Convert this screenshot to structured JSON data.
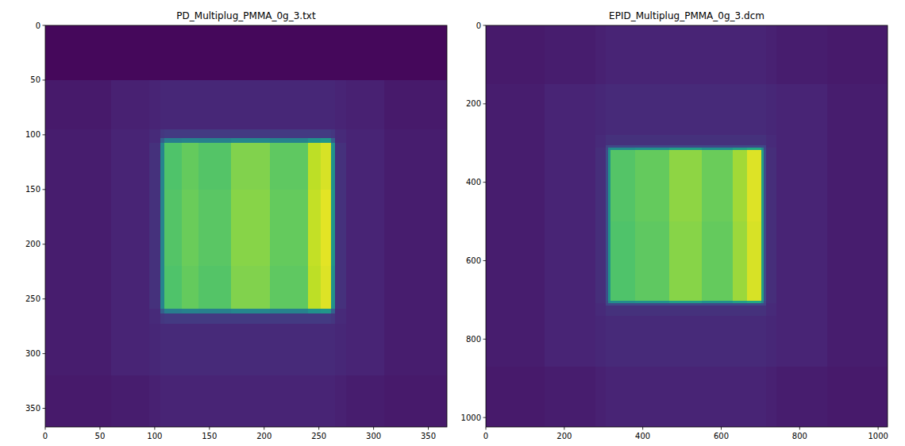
{
  "chart_data": [
    {
      "type": "heatmap",
      "title": "PD_Multiplug_PMMA_0g_3.txt",
      "xlim": [
        0,
        367
      ],
      "ylim": [
        367,
        0
      ],
      "xticks": [
        0,
        50,
        100,
        150,
        200,
        250,
        300,
        350
      ],
      "yticks": [
        0,
        50,
        100,
        150,
        200,
        250,
        300,
        350
      ],
      "zlim": [
        0,
        1
      ],
      "x_edges": [
        0,
        60,
        95,
        105,
        109,
        125,
        140,
        170,
        205,
        240,
        252,
        261,
        265,
        275,
        310,
        367
      ],
      "y_edges": [
        0,
        50,
        95,
        103,
        107,
        150,
        220,
        259,
        263,
        273,
        320,
        367
      ],
      "z": [
        [
          0.02,
          0.02,
          0.02,
          0.02,
          0.02,
          0.02,
          0.02,
          0.02,
          0.02,
          0.02,
          0.02,
          0.02,
          0.02,
          0.02,
          0.02
        ],
        [
          0.07,
          0.09,
          0.1,
          0.11,
          0.11,
          0.11,
          0.11,
          0.11,
          0.11,
          0.11,
          0.11,
          0.11,
          0.1,
          0.09,
          0.07
        ],
        [
          0.08,
          0.1,
          0.12,
          0.16,
          0.17,
          0.17,
          0.17,
          0.17,
          0.17,
          0.17,
          0.17,
          0.16,
          0.12,
          0.1,
          0.08
        ],
        [
          0.08,
          0.1,
          0.12,
          0.3,
          0.42,
          0.44,
          0.43,
          0.46,
          0.44,
          0.5,
          0.52,
          0.3,
          0.12,
          0.1,
          0.08
        ],
        [
          0.08,
          0.1,
          0.14,
          0.45,
          0.72,
          0.76,
          0.73,
          0.81,
          0.75,
          0.9,
          0.94,
          0.5,
          0.14,
          0.1,
          0.08
        ],
        [
          0.08,
          0.1,
          0.14,
          0.45,
          0.73,
          0.77,
          0.74,
          0.82,
          0.76,
          0.91,
          0.96,
          0.52,
          0.14,
          0.1,
          0.08
        ],
        [
          0.08,
          0.1,
          0.14,
          0.45,
          0.72,
          0.76,
          0.73,
          0.81,
          0.75,
          0.9,
          0.95,
          0.5,
          0.14,
          0.1,
          0.08
        ],
        [
          0.08,
          0.1,
          0.12,
          0.3,
          0.42,
          0.44,
          0.43,
          0.46,
          0.44,
          0.5,
          0.52,
          0.3,
          0.12,
          0.1,
          0.08
        ],
        [
          0.08,
          0.1,
          0.12,
          0.16,
          0.17,
          0.17,
          0.17,
          0.17,
          0.17,
          0.17,
          0.17,
          0.16,
          0.12,
          0.1,
          0.08
        ],
        [
          0.08,
          0.1,
          0.11,
          0.12,
          0.12,
          0.12,
          0.12,
          0.12,
          0.12,
          0.12,
          0.12,
          0.12,
          0.11,
          0.1,
          0.08
        ],
        [
          0.07,
          0.08,
          0.09,
          0.1,
          0.1,
          0.1,
          0.1,
          0.1,
          0.1,
          0.1,
          0.1,
          0.1,
          0.09,
          0.08,
          0.07
        ]
      ]
    },
    {
      "type": "heatmap",
      "title": "EPID_Multiplug_PMMA_0g_3.dcm",
      "xlim": [
        0,
        1024
      ],
      "ylim": [
        1024,
        0
      ],
      "xticks": [
        0,
        200,
        400,
        600,
        800,
        1000
      ],
      "yticks": [
        0,
        200,
        400,
        600,
        800,
        1000
      ],
      "zlim": [
        0,
        1
      ],
      "x_edges": [
        0,
        150,
        280,
        305,
        312,
        318,
        380,
        468,
        550,
        630,
        665,
        702,
        708,
        715,
        740,
        870,
        1024
      ],
      "y_edges": [
        0,
        150,
        280,
        305,
        312,
        318,
        500,
        702,
        708,
        715,
        740,
        870,
        1024
      ],
      "z": [
        [
          0.07,
          0.08,
          0.09,
          0.1,
          0.1,
          0.1,
          0.1,
          0.1,
          0.1,
          0.1,
          0.1,
          0.1,
          0.1,
          0.09,
          0.08,
          0.07
        ],
        [
          0.08,
          0.1,
          0.11,
          0.12,
          0.12,
          0.12,
          0.12,
          0.12,
          0.12,
          0.12,
          0.12,
          0.12,
          0.12,
          0.11,
          0.1,
          0.08
        ],
        [
          0.08,
          0.1,
          0.12,
          0.14,
          0.14,
          0.14,
          0.14,
          0.14,
          0.14,
          0.14,
          0.14,
          0.14,
          0.14,
          0.12,
          0.1,
          0.08
        ],
        [
          0.08,
          0.1,
          0.12,
          0.2,
          0.22,
          0.22,
          0.22,
          0.22,
          0.22,
          0.22,
          0.22,
          0.22,
          0.2,
          0.12,
          0.1,
          0.08
        ],
        [
          0.08,
          0.1,
          0.13,
          0.22,
          0.45,
          0.48,
          0.5,
          0.55,
          0.5,
          0.55,
          0.6,
          0.45,
          0.22,
          0.13,
          0.1,
          0.08
        ],
        [
          0.08,
          0.1,
          0.13,
          0.24,
          0.5,
          0.73,
          0.76,
          0.83,
          0.77,
          0.86,
          0.95,
          0.55,
          0.24,
          0.13,
          0.1,
          0.08
        ],
        [
          0.08,
          0.1,
          0.13,
          0.24,
          0.5,
          0.72,
          0.75,
          0.82,
          0.76,
          0.85,
          0.94,
          0.55,
          0.24,
          0.13,
          0.1,
          0.08
        ],
        [
          0.08,
          0.1,
          0.13,
          0.22,
          0.45,
          0.48,
          0.5,
          0.55,
          0.5,
          0.55,
          0.6,
          0.45,
          0.22,
          0.13,
          0.1,
          0.08
        ],
        [
          0.08,
          0.1,
          0.12,
          0.2,
          0.22,
          0.22,
          0.22,
          0.22,
          0.22,
          0.22,
          0.22,
          0.22,
          0.2,
          0.12,
          0.1,
          0.08
        ],
        [
          0.08,
          0.1,
          0.12,
          0.14,
          0.14,
          0.14,
          0.14,
          0.14,
          0.14,
          0.14,
          0.14,
          0.14,
          0.14,
          0.12,
          0.1,
          0.08
        ],
        [
          0.08,
          0.1,
          0.11,
          0.12,
          0.12,
          0.12,
          0.12,
          0.12,
          0.12,
          0.12,
          0.12,
          0.12,
          0.12,
          0.11,
          0.1,
          0.08
        ],
        [
          0.07,
          0.08,
          0.09,
          0.1,
          0.1,
          0.1,
          0.1,
          0.1,
          0.1,
          0.1,
          0.1,
          0.1,
          0.1,
          0.09,
          0.08,
          0.07
        ]
      ]
    }
  ]
}
